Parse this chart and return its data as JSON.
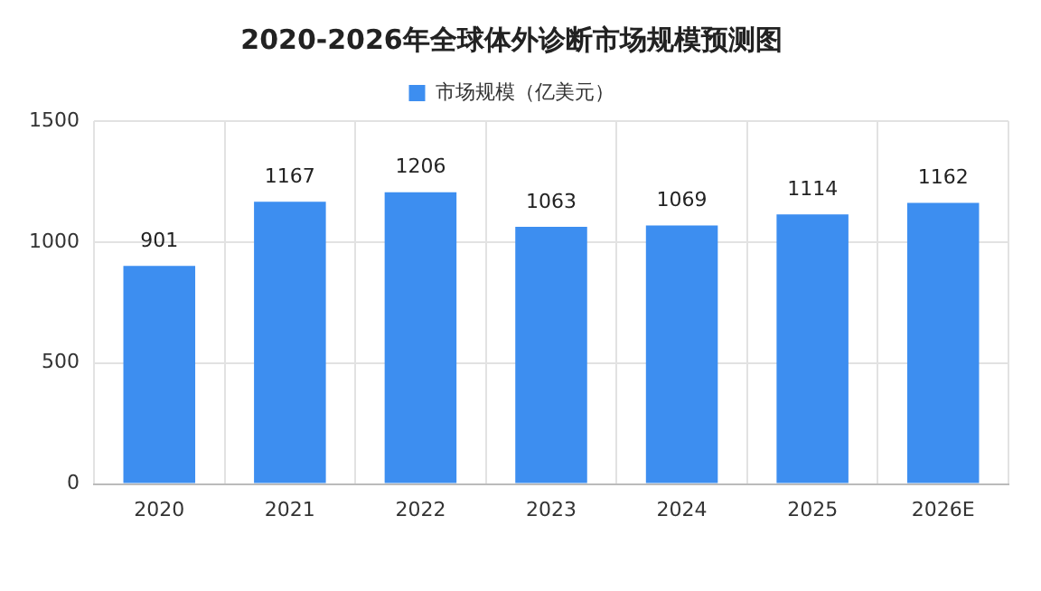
{
  "chart_data": {
    "type": "bar",
    "title": "2020-2026年全球体外诊断市场规模预测图",
    "categories": [
      "2020",
      "2021",
      "2022",
      "2023",
      "2024",
      "2025",
      "2026E"
    ],
    "series": [
      {
        "name": "市场规模（亿美元）",
        "color": "#3d8ef0",
        "values": [
          901,
          1167,
          1206,
          1063,
          1069,
          1114,
          1162
        ]
      }
    ],
    "ylim": [
      0,
      1500
    ],
    "yticks": [
      0,
      500,
      1000,
      1500
    ],
    "grid": true,
    "legend": "top",
    "data_labels": true
  }
}
